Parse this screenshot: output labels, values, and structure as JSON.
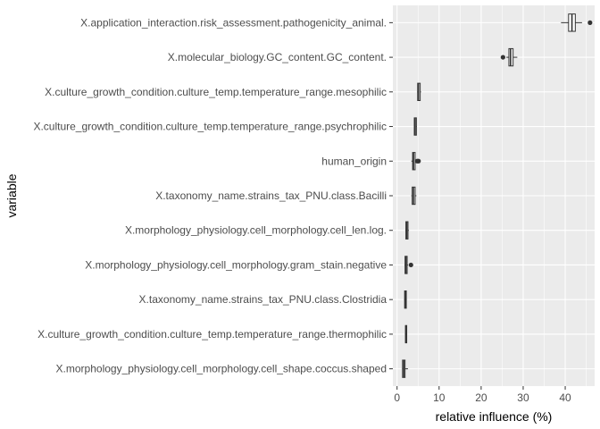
{
  "chart_data": {
    "type": "boxplot",
    "orientation": "horizontal",
    "xlabel": "relative influence (%)",
    "ylabel": "variable",
    "xlim": [
      -1,
      47
    ],
    "x_ticks": [
      0,
      10,
      20,
      30,
      40
    ],
    "grid": true,
    "colors": {
      "panel": "#EBEBEB",
      "grid_major": "#FFFFFF",
      "box_fill": "#FFFFFF",
      "box_stroke": "#333333"
    },
    "categories": [
      "X.application_interaction.risk_assessment.pathogenicity_animal.",
      "X.molecular_biology.GC_content.GC_content.",
      "X.culture_growth_condition.culture_temp.temperature_range.mesophilic",
      "X.culture_growth_condition.culture_temp.temperature_range.psychrophilic",
      "human_origin",
      "X.taxonomy_name.strains_tax_PNU.class.Bacilli",
      "X.morphology_physiology.cell_morphology.cell_len.log.",
      "X.morphology_physiology.cell_morphology.gram_stain.negative",
      "X.taxonomy_name.strains_tax_PNU.class.Clostridia",
      "X.culture_growth_condition.culture_temp.temperature_range.thermophilic",
      "X.morphology_physiology.cell_morphology.cell_shape.coccus.shaped"
    ],
    "boxes": [
      {
        "whisker_low": 39.0,
        "q1": 40.8,
        "median": 41.6,
        "q3": 42.4,
        "whisker_high": 44.0,
        "outliers": [
          45.9
        ]
      },
      {
        "whisker_low": 26.0,
        "q1": 26.6,
        "median": 27.0,
        "q3": 27.6,
        "whisker_high": 28.6,
        "outliers": [
          25.2
        ]
      },
      {
        "whisker_low": 4.8,
        "q1": 4.9,
        "median": 5.1,
        "q3": 5.5,
        "whisker_high": 5.7,
        "outliers": []
      },
      {
        "whisker_low": 4.0,
        "q1": 4.1,
        "median": 4.3,
        "q3": 4.6,
        "whisker_high": 4.7,
        "outliers": []
      },
      {
        "whisker_low": 3.4,
        "q1": 3.7,
        "median": 3.9,
        "q3": 4.3,
        "whisker_high": 4.6,
        "outliers": [
          5.1,
          4.8
        ]
      },
      {
        "whisker_low": 3.4,
        "q1": 3.6,
        "median": 3.9,
        "q3": 4.3,
        "whisker_high": 4.6,
        "outliers": []
      },
      {
        "whisker_low": 2.0,
        "q1": 2.1,
        "median": 2.3,
        "q3": 2.6,
        "whisker_high": 2.8,
        "outliers": []
      },
      {
        "whisker_low": 1.8,
        "q1": 1.9,
        "median": 2.1,
        "q3": 2.4,
        "whisker_high": 2.6,
        "outliers": [
          3.3
        ]
      },
      {
        "whisker_low": 1.7,
        "q1": 1.8,
        "median": 2.0,
        "q3": 2.2,
        "whisker_high": 2.3,
        "outliers": []
      },
      {
        "whisker_low": 1.9,
        "q1": 2.0,
        "median": 2.1,
        "q3": 2.3,
        "whisker_high": 2.4,
        "outliers": []
      },
      {
        "whisker_low": 1.2,
        "q1": 1.3,
        "median": 1.6,
        "q3": 1.9,
        "whisker_high": 2.6,
        "outliers": []
      }
    ]
  }
}
